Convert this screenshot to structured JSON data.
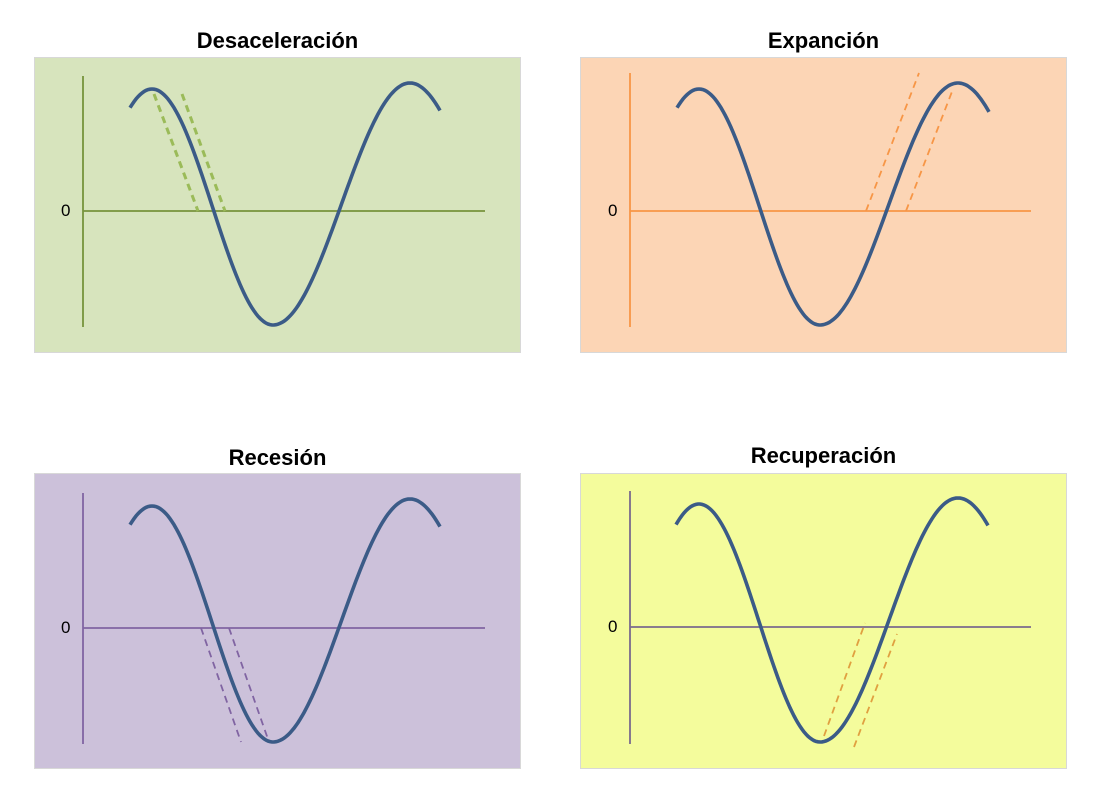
{
  "curve_color": "#3b5b87",
  "panels": [
    {
      "title": "Desaceleración",
      "zero_label": "0",
      "background": "#d7e4bd",
      "axis_color": "#77933c",
      "dash_color": "#9bbb59"
    },
    {
      "title": "Expanción",
      "zero_label": "0",
      "background": "#fcd5b5",
      "axis_color": "#f79646",
      "dash_color": "#f79646"
    },
    {
      "title": "Recesión",
      "zero_label": "0",
      "background": "#ccc1da",
      "axis_color": "#8064a2",
      "dash_color": "#8064a2"
    },
    {
      "title": "Recuperación",
      "zero_label": "0",
      "background": "#f4fc9c",
      "axis_color": "#7a6a8c",
      "dash_color": "#e0a040"
    }
  ]
}
